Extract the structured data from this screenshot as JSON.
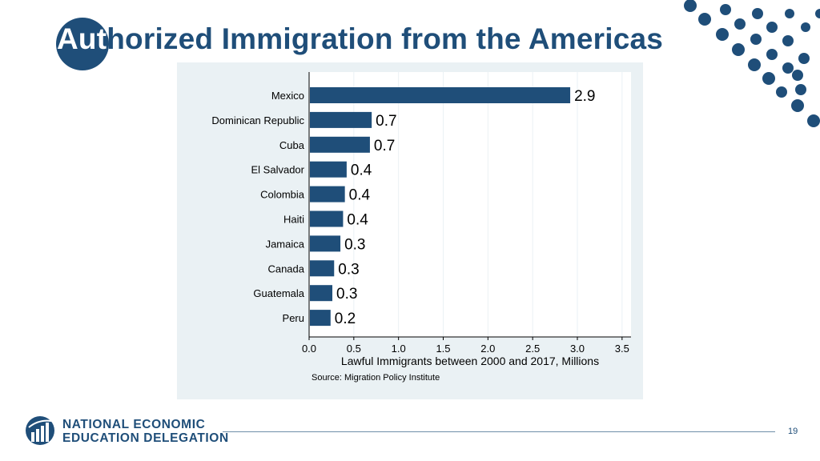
{
  "slide": {
    "title_lead": "Aut",
    "title_rest": "horized Immigration from the Americas",
    "page_number": "19"
  },
  "footer": {
    "org_line1": "NATIONAL ECONOMIC",
    "org_line2": "EDUCATION DELEGATION"
  },
  "colors": {
    "brand": "#1f4e79",
    "bar": "#1f4e79",
    "panel_bg": "#eaf1f4",
    "plot_bg": "#ffffff"
  },
  "chart_data": {
    "type": "bar",
    "orientation": "horizontal",
    "categories": [
      "Mexico",
      "Dominican Republic",
      "Cuba",
      "El Salvador",
      "Colombia",
      "Haiti",
      "Jamaica",
      "Canada",
      "Guatemala",
      "Peru"
    ],
    "values": [
      2.9,
      0.7,
      0.7,
      0.4,
      0.4,
      0.4,
      0.3,
      0.3,
      0.3,
      0.2
    ],
    "bar_lengths": [
      2.92,
      0.7,
      0.68,
      0.42,
      0.4,
      0.38,
      0.35,
      0.28,
      0.26,
      0.24
    ],
    "data_labels": [
      "2.9",
      "0.7",
      "0.7",
      "0.4",
      "0.4",
      "0.4",
      "0.3",
      "0.3",
      "0.3",
      "0.2"
    ],
    "xlabel": "Lawful Immigrants between 2000 and 2017, Millions",
    "source": "Source: Migration Policy Institute",
    "xlim": [
      0,
      3.6
    ],
    "xticks": [
      0,
      0.5,
      1,
      1.5,
      2,
      2.5,
      3,
      3.5
    ],
    "xtick_labels": [
      "0.0",
      "0.5",
      "1.0",
      "1.5",
      "2.0",
      "2.5",
      "3.0",
      "3.5"
    ],
    "grid": true
  }
}
